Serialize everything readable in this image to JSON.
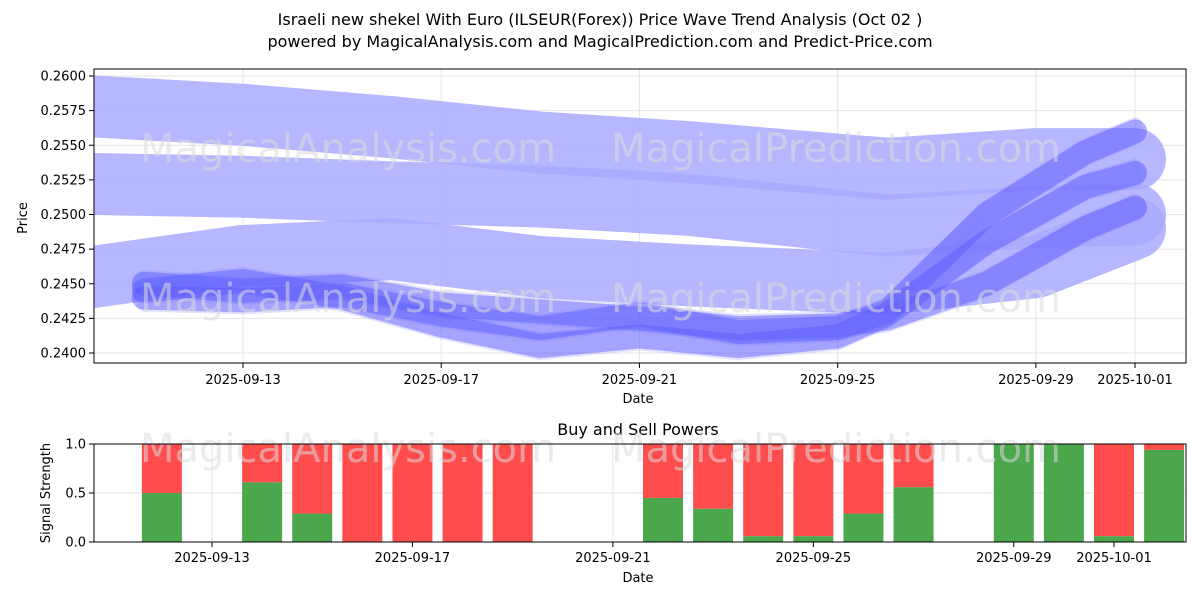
{
  "title_line1": "Israeli new shekel With Euro (ILSEUR(Forex)) Price Wave Trend Analysis (Oct 02 )",
  "title_line2": "powered by MagicalAnalysis.com and MagicalPrediction.com and Predict-Price.com",
  "watermarks": [
    "MagicalAnalysis.com",
    "MagicalPrediction.com"
  ],
  "chart_data": [
    {
      "type": "line",
      "title": "",
      "xlabel": "Date",
      "ylabel": "Price",
      "x_range": [
        "2025-09-10",
        "2025-10-02"
      ],
      "ylim": [
        0.2393,
        0.2605
      ],
      "x_ticks": [
        "2025-09-13",
        "2025-09-17",
        "2025-09-21",
        "2025-09-25",
        "2025-09-29",
        "2025-10-01"
      ],
      "y_ticks": [
        "0.2400",
        "0.2425",
        "0.2450",
        "0.2475",
        "0.2500",
        "0.2525",
        "0.2550",
        "0.2575",
        "0.2600"
      ],
      "grid": true,
      "series": [
        {
          "name": "wave-upper-band",
          "color": "#aaaaff",
          "x": [
            "2025-09-10",
            "2025-09-13",
            "2025-09-16",
            "2025-09-19",
            "2025-09-22",
            "2025-09-26",
            "2025-09-29",
            "2025-10-01"
          ],
          "values": [
            0.2578,
            0.2572,
            0.2563,
            0.2552,
            0.2545,
            0.2533,
            0.254,
            0.254
          ]
        },
        {
          "name": "wave-middle-band",
          "color": "#aaaaff",
          "x": [
            "2025-09-10",
            "2025-09-13",
            "2025-09-16",
            "2025-09-19",
            "2025-09-22",
            "2025-09-26",
            "2025-09-29",
            "2025-10-01"
          ],
          "values": [
            0.2522,
            0.252,
            0.2516,
            0.2513,
            0.2507,
            0.2492,
            0.2498,
            0.25
          ]
        },
        {
          "name": "wave-lower-band",
          "color": "#aaaaff",
          "x": [
            "2025-09-10",
            "2025-09-13",
            "2025-09-16",
            "2025-09-19",
            "2025-09-22",
            "2025-09-26",
            "2025-09-29",
            "2025-10-01"
          ],
          "values": [
            0.2455,
            0.247,
            0.2475,
            0.2462,
            0.2456,
            0.245,
            0.2462,
            0.249
          ]
        },
        {
          "name": "price-path-1",
          "color": "#4d4dff",
          "x": [
            "2025-09-11",
            "2025-09-13",
            "2025-09-15",
            "2025-09-17",
            "2025-09-19",
            "2025-09-21",
            "2025-09-23",
            "2025-09-25",
            "2025-09-26",
            "2025-09-28",
            "2025-09-30",
            "2025-10-01"
          ],
          "values": [
            0.245,
            0.2445,
            0.2448,
            0.2435,
            0.243,
            0.2425,
            0.2418,
            0.242,
            0.2425,
            0.245,
            0.249,
            0.2505
          ]
        },
        {
          "name": "price-path-2",
          "color": "#4d4dff",
          "x": [
            "2025-09-11",
            "2025-09-13",
            "2025-09-15",
            "2025-09-17",
            "2025-09-19",
            "2025-09-21",
            "2025-09-23",
            "2025-09-25",
            "2025-09-26",
            "2025-09-28",
            "2025-09-30",
            "2025-10-01"
          ],
          "values": [
            0.244,
            0.2438,
            0.2442,
            0.2428,
            0.2418,
            0.2428,
            0.2415,
            0.2418,
            0.243,
            0.25,
            0.2545,
            0.256
          ]
        },
        {
          "name": "price-path-3",
          "color": "#4d4dff",
          "x": [
            "2025-09-11",
            "2025-09-13",
            "2025-09-15",
            "2025-09-17",
            "2025-09-19",
            "2025-09-21",
            "2025-09-23",
            "2025-09-25",
            "2025-09-26",
            "2025-09-28",
            "2025-09-30",
            "2025-10-01"
          ],
          "values": [
            0.2445,
            0.2452,
            0.244,
            0.242,
            0.2405,
            0.2412,
            0.2405,
            0.2412,
            0.2428,
            0.248,
            0.252,
            0.253
          ]
        }
      ]
    },
    {
      "type": "bar",
      "stacked": true,
      "title": "Buy and Sell Powers",
      "xlabel": "Date",
      "ylabel": "Signal Strength",
      "ylim": [
        0,
        1
      ],
      "x_ticks": [
        "2025-09-13",
        "2025-09-17",
        "2025-09-21",
        "2025-09-25",
        "2025-09-29",
        "2025-10-01"
      ],
      "y_ticks": [
        "0.0",
        "0.5",
        "1.0"
      ],
      "categories": [
        "2025-09-12",
        "2025-09-14",
        "2025-09-15",
        "2025-09-16",
        "2025-09-17",
        "2025-09-18",
        "2025-09-19",
        "2025-09-22",
        "2025-09-23",
        "2025-09-24",
        "2025-09-25",
        "2025-09-26",
        "2025-09-27",
        "2025-09-29",
        "2025-09-30",
        "2025-10-01",
        "2025-10-02"
      ],
      "series": [
        {
          "name": "Buy",
          "color": "#4ca64c",
          "values": [
            0.5,
            0.61,
            0.29,
            0.0,
            0.0,
            0.0,
            0.0,
            0.45,
            0.34,
            0.06,
            0.06,
            0.29,
            0.56,
            1.0,
            1.0,
            0.06,
            0.94
          ]
        },
        {
          "name": "Sell",
          "color": "#ff4d4d",
          "values": [
            0.5,
            0.39,
            0.71,
            1.0,
            1.0,
            1.0,
            1.0,
            0.55,
            0.66,
            0.94,
            0.94,
            0.71,
            0.44,
            0.0,
            0.0,
            0.94,
            0.06
          ]
        }
      ]
    }
  ]
}
